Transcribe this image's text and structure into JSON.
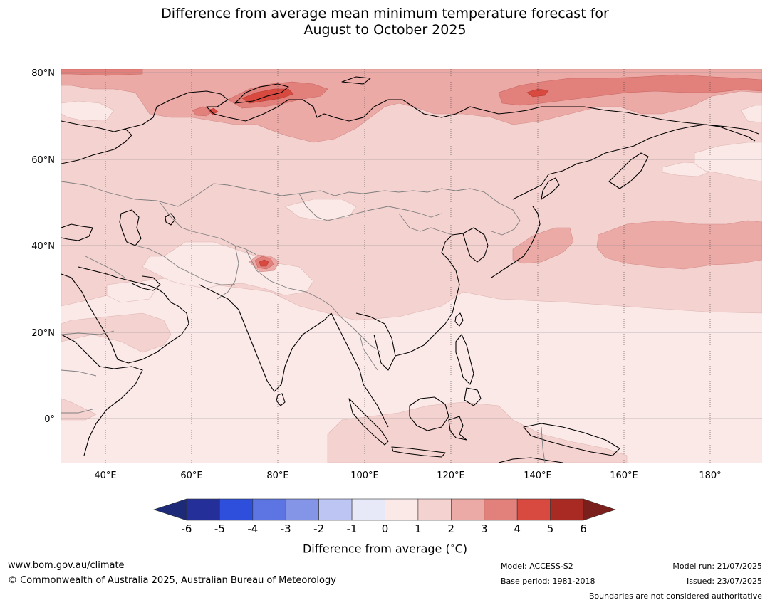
{
  "header": {
    "title_line1": "Difference from average mean minimum temperature forecast for",
    "title_line2": "August to October 2025"
  },
  "map": {
    "region": "Asia",
    "lon_range": [
      30,
      190
    ],
    "lat_range": [
      -10,
      81
    ],
    "lat_ticks": [
      {
        "value": 80,
        "label": "80°N"
      },
      {
        "value": 60,
        "label": "60°N"
      },
      {
        "value": 40,
        "label": "40°N"
      },
      {
        "value": 20,
        "label": "20°N"
      },
      {
        "value": 0,
        "label": "0°"
      }
    ],
    "lon_ticks": [
      {
        "value": 40,
        "label": "40°E"
      },
      {
        "value": 60,
        "label": "60°E"
      },
      {
        "value": 80,
        "label": "80°E"
      },
      {
        "value": 100,
        "label": "100°E"
      },
      {
        "value": 120,
        "label": "120°E"
      },
      {
        "value": 140,
        "label": "140°E"
      },
      {
        "value": 160,
        "label": "160°E"
      },
      {
        "value": 180,
        "label": "180°"
      }
    ],
    "gridlines": true,
    "background_anomaly_band": "0 to 1",
    "colors": {
      "band_0_1": "#fbe9e8",
      "band_1_2": "#f4d2d0",
      "band_2_3": "#ecaaa7",
      "band_3_4": "#e2817c",
      "band_4_5": "#d84a40",
      "band_5_6": "#a92a22",
      "coast": "#000000",
      "border": "#7f7f7f"
    }
  },
  "colorbar": {
    "ticks": [
      "-6",
      "-5",
      "-4",
      "-3",
      "-2",
      "-1",
      "0",
      "1",
      "2",
      "3",
      "4",
      "5",
      "6"
    ],
    "colors": [
      "#252f99",
      "#2e4fdc",
      "#5d75e3",
      "#8495e8",
      "#bdc6f3",
      "#e7e9f9",
      "#fbe9e8",
      "#f4d2d0",
      "#ecaaa7",
      "#e2817c",
      "#d84a40",
      "#a92a22"
    ],
    "under_color": "#1c2a78",
    "over_color": "#7a1f1b",
    "label": "Difference from average (",
    "label_unit_degree": "∘",
    "label_unit": "C)"
  },
  "footer": {
    "url": "www.bom.gov.au/climate",
    "copyright": "© Commonwealth of Australia 2025, Australian Bureau of Meteorology",
    "model": "Model: ACCESS-S2",
    "base_period": "Base period: 1981-2018",
    "model_run": "Model run: 21/07/2025",
    "issued": "Issued: 23/07/2025",
    "boundaries_note": "Boundaries are not considered authoritative"
  }
}
